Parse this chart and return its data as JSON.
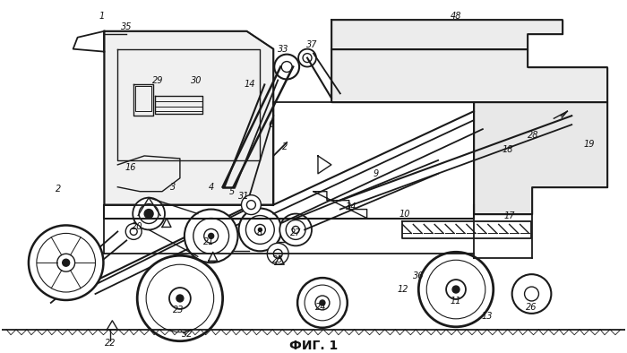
{
  "title": "ФИГ. 1",
  "title_fontsize": 10,
  "bg_color": "#ffffff",
  "line_color": "#1a1a1a",
  "line_width": 1.0,
  "fig_width": 7.0,
  "fig_height": 3.94,
  "dpi": 100
}
